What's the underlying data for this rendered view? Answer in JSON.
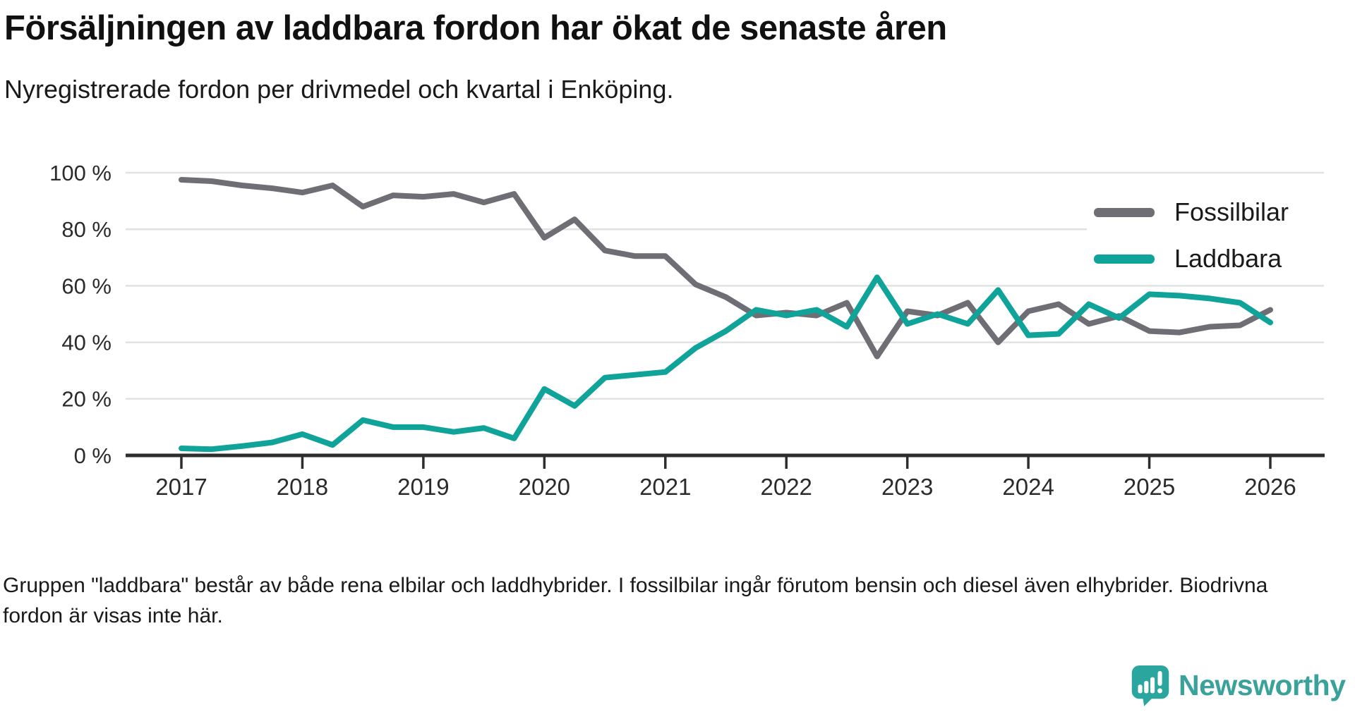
{
  "header": {
    "title": "Försäljningen av laddbara fordon har ökat de senaste åren",
    "subtitle": "Nyregistrerade fordon per drivmedel och kvartal i Enköping."
  },
  "legend": {
    "items": [
      {
        "label": "Fossilbilar",
        "color": "#6e6e74"
      },
      {
        "label": "Laddbara",
        "color": "#10a39a"
      }
    ]
  },
  "footer": {
    "note": "Gruppen \"laddbara\" består av både rena elbilar och laddhybrider. I fossilbilar ingår förutom bensin och diesel även elhybrider. Biodrivna fordon är visas inte här."
  },
  "branding": {
    "wordmark": "Newsworthy",
    "wordmark_color": "#3ba29b",
    "bubble_color": "#2aa69e"
  },
  "chart_data": {
    "type": "line",
    "title": "Försäljningen av laddbara fordon har ökat de senaste åren",
    "subtitle": "Nyregistrerade fordon per drivmedel och kvartal i Enköping.",
    "x_unit": "quarter",
    "x_start": "2017-Q1",
    "x_end": "2026-Q1",
    "points_per_year": 4,
    "x_tick_labels": [
      "2017",
      "2018",
      "2019",
      "2020",
      "2021",
      "2022",
      "2023",
      "2024",
      "2025",
      "2026"
    ],
    "y_tick_labels": [
      "0 %",
      "20 %",
      "40 %",
      "60 %",
      "80 %",
      "100 %"
    ],
    "y_tick_values": [
      0,
      20,
      40,
      60,
      80,
      100
    ],
    "ylim": [
      0,
      100
    ],
    "grid": "horizontal",
    "legend_position": "top-right",
    "colors": {
      "axis": "#2d2d2d",
      "gridline": "#e2e2e2",
      "tick_text": "#2b2b2b"
    },
    "series": [
      {
        "name": "Fossilbilar",
        "color": "#6e6e74",
        "values": [
          97.5,
          97,
          95.5,
          94.5,
          93,
          95.5,
          88,
          92,
          91.5,
          92.5,
          89.5,
          92.5,
          77,
          83.5,
          72.5,
          70.5,
          70.5,
          60.5,
          56,
          49.5,
          50.5,
          49.5,
          54,
          35,
          51,
          49.5,
          54,
          40,
          51,
          53.5,
          46.5,
          49.3,
          44,
          43.5,
          45.5,
          46,
          51.5
        ]
      },
      {
        "name": "Laddbara",
        "color": "#10a39a",
        "values": [
          2.5,
          2.2,
          3.3,
          4.6,
          7.5,
          3.7,
          12.5,
          10,
          10,
          8.3,
          9.7,
          6,
          23.5,
          17.5,
          27.5,
          28.5,
          29.5,
          38,
          44,
          51.5,
          49.5,
          51.5,
          45.5,
          63,
          46.5,
          50,
          46.5,
          58.5,
          42.5,
          43,
          53.5,
          48.6,
          57,
          56.5,
          55.5,
          54,
          47
        ]
      }
    ]
  }
}
